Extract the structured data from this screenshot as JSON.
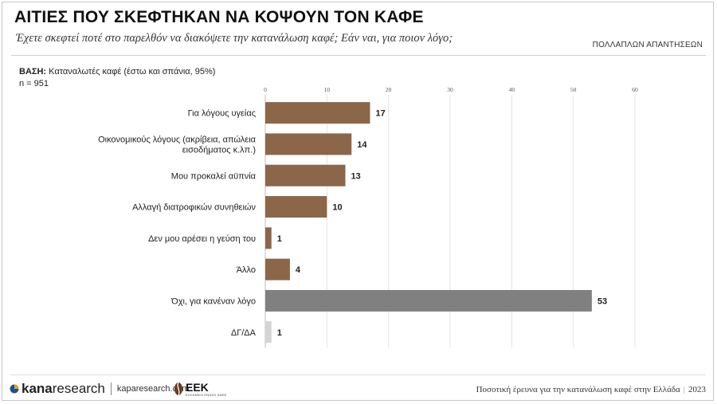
{
  "header": {
    "title": "ΑΙΤΙΕΣ ΠΟΥ ΣΚΕΦΤΗΚΑΝ ΝΑ ΚΟΨΟΥΝ ΤΟΝ ΚΑΦΕ",
    "subtitle": "Έχετε σκεφτεί ποτέ στο παρελθόν να διακόψετε την κατανάλωση καφέ; Εάν ναι, για ποιον λόγο;",
    "multi_note": "ΠΟΛΛΑΠΛΩΝ ΑΠΑΝΤΗΣΕΩΝ"
  },
  "base": {
    "label": "ΒΑΣΗ:",
    "text": "Καταναλωτές καφέ (έστω και σπάνια, 95%)",
    "n": "n = 951"
  },
  "chart_data": {
    "type": "bar",
    "orientation": "horizontal",
    "xlim": [
      0,
      60
    ],
    "xticks": [
      0,
      10,
      20,
      30,
      40,
      50,
      60
    ],
    "grid": true,
    "categories": [
      [
        "Για λόγους υγείας"
      ],
      [
        "Οικονομικούς λόγους (ακρίβεια, απώλεια",
        "εισοδήματος κ.λπ.)"
      ],
      [
        "Μου προκαλεί αϋπνία"
      ],
      [
        "Αλλαγή διατροφικών συνηθειών"
      ],
      [
        "Δεν μου αρέσει η γεύση του"
      ],
      [
        "Άλλο"
      ],
      [
        "Όχι, για κανέναν λόγο"
      ],
      [
        "ΔΓ/ΔΑ"
      ]
    ],
    "values": [
      17,
      14,
      13,
      10,
      1,
      4,
      53,
      1
    ],
    "colors": [
      "#8b6648",
      "#8b6648",
      "#8b6648",
      "#8b6648",
      "#8b6648",
      "#8b6648",
      "#808080",
      "#d4d4d4"
    ]
  },
  "footer": {
    "logo_text_bold": "kana",
    "logo_text": "research",
    "logo_url": "kaparesearch.com",
    "eek_text": "ΕΕΚ",
    "eek_sub": "ΕΛΛΗΝΙΚΗ ΕΝΩΣΗ ΚΑΦΕ",
    "survey": "Ποσοτική έρευνα για την κατανάλωση καφέ στην Ελλάδα",
    "year": "2023"
  }
}
